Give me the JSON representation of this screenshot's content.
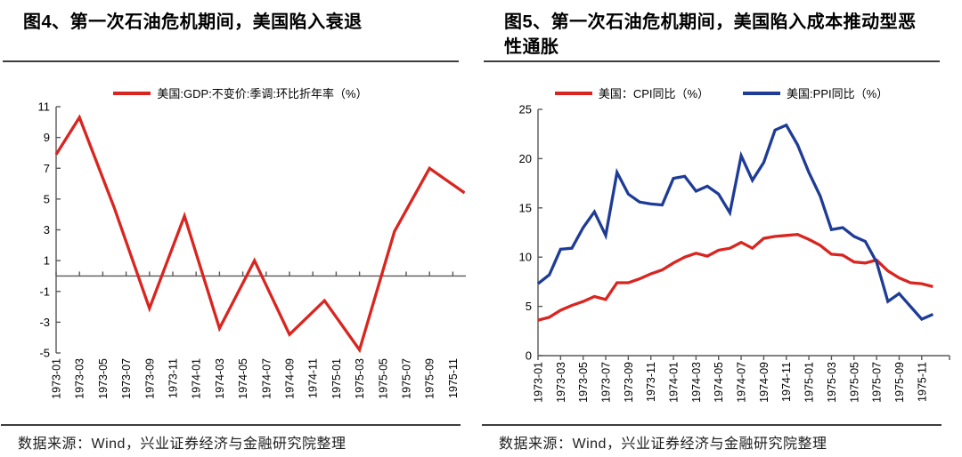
{
  "page": {
    "source_note": "数据来源：Wind，兴业证券经济与金融研究院整理"
  },
  "colors": {
    "red": "#D92520",
    "blue": "#1E3C96",
    "axis": "#595959"
  },
  "chart_data": [
    {
      "id": "fig4",
      "type": "line",
      "title": "图4、第一次石油危机期间，美国陷入衰退",
      "legend": [
        {
          "name": "美国:GDP:不变价:季调:环比折年率（%）",
          "color": "#D92520"
        }
      ],
      "ylim": [
        -5,
        11
      ],
      "y_ticks": [
        11,
        9,
        7,
        5,
        3,
        1,
        -1,
        -3,
        -5
      ],
      "x_start": "1973-01",
      "x_end": "1975-12",
      "x_unit": "month",
      "x_tick_labels": [
        "1973-01",
        "1973-03",
        "1973-05",
        "1973-07",
        "1973-09",
        "1973-11",
        "1974-01",
        "1974-03",
        "1974-05",
        "1974-07",
        "1974-09",
        "1974-11",
        "1975-01",
        "1975-03",
        "1975-05",
        "1975-07",
        "1975-09",
        "1975-11"
      ],
      "grid": false,
      "legend_position": "top",
      "series": [
        {
          "name": "美国:GDP:不变价:季调:环比折年率（%）",
          "color": "#D92520",
          "points": [
            {
              "x": "1973-01",
              "m": 0,
              "y": 7.9
            },
            {
              "x": "1973-03",
              "m": 2,
              "y": 10.3
            },
            {
              "x": "1973-06",
              "m": 5,
              "y": 4.4
            },
            {
              "x": "1973-09",
              "m": 8,
              "y": -2.1
            },
            {
              "x": "1973-12",
              "m": 11,
              "y": 3.9
            },
            {
              "x": "1974-03",
              "m": 14,
              "y": -3.4
            },
            {
              "x": "1974-06",
              "m": 17,
              "y": 1.0
            },
            {
              "x": "1974-09",
              "m": 20,
              "y": -3.8
            },
            {
              "x": "1974-12",
              "m": 23,
              "y": -1.6
            },
            {
              "x": "1975-03",
              "m": 26,
              "y": -4.8
            },
            {
              "x": "1975-06",
              "m": 29,
              "y": 2.9
            },
            {
              "x": "1975-09",
              "m": 32,
              "y": 7.0
            },
            {
              "x": "1975-12",
              "m": 35,
              "y": 5.4
            }
          ]
        }
      ]
    },
    {
      "id": "fig5",
      "type": "line",
      "title": "图5、第一次石油危机期间，美国陷入成本推动型恶性通胀",
      "legend": [
        {
          "name": "美国：CPI同比（%）",
          "color": "#D92520"
        },
        {
          "name": "美国:PPI同比（%）",
          "color": "#1E3C96"
        }
      ],
      "ylim": [
        0,
        25
      ],
      "y_ticks": [
        25,
        20,
        15,
        10,
        5,
        0
      ],
      "x_start": "1973-01",
      "x_end": "1975-12",
      "x_unit": "month",
      "x_tick_labels": [
        "1973-01",
        "1973-03",
        "1973-05",
        "1973-07",
        "1973-09",
        "1973-11",
        "1974-01",
        "1974-03",
        "1974-05",
        "1974-07",
        "1974-09",
        "1974-11",
        "1975-01",
        "1975-03",
        "1975-05",
        "1975-07",
        "1975-09",
        "1975-11"
      ],
      "grid": false,
      "legend_position": "top",
      "series": [
        {
          "name": "美国：CPI同比（%）",
          "color": "#D92520",
          "values": [
            3.6,
            3.9,
            4.6,
            5.1,
            5.5,
            6.0,
            5.7,
            7.4,
            7.4,
            7.8,
            8.3,
            8.7,
            9.4,
            10.0,
            10.4,
            10.1,
            10.7,
            10.9,
            11.5,
            10.9,
            11.9,
            12.1,
            12.2,
            12.3,
            11.8,
            11.2,
            10.3,
            10.2,
            9.5,
            9.4,
            9.7,
            8.6,
            7.9,
            7.4,
            7.3,
            7.0
          ]
        },
        {
          "name": "美国:PPI同比（%）",
          "color": "#1E3C96",
          "values": [
            7.3,
            8.2,
            10.8,
            10.9,
            13.0,
            14.6,
            12.2,
            18.6,
            16.4,
            15.6,
            15.4,
            15.3,
            18.0,
            18.2,
            16.7,
            17.2,
            16.4,
            14.5,
            20.3,
            17.8,
            19.6,
            22.9,
            23.4,
            21.4,
            18.6,
            16.2,
            12.8,
            13.0,
            12.1,
            11.6,
            9.5,
            5.5,
            6.3,
            5.0,
            3.7,
            4.2
          ]
        }
      ]
    }
  ]
}
